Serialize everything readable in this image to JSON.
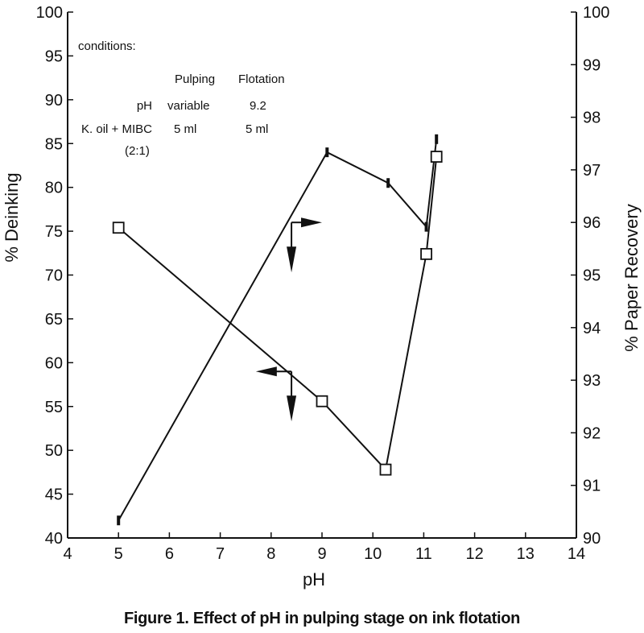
{
  "caption": "Figure 1. Effect of pH in pulping stage on ink flotation",
  "conditions": {
    "heading": "conditions:",
    "col_pulping": "Pulping",
    "col_flotation": "Flotation",
    "row1_label": "pH",
    "row1_pulping": "variable",
    "row1_flotation": "9.2",
    "row2_label": "K. oil + MIBC",
    "row2_label_sub": "(2:1)",
    "row2_pulping": "5 ml",
    "row2_flotation": "5 ml"
  },
  "chart_data": {
    "type": "line",
    "title": "",
    "xlabel": "pH",
    "ylabel": "% Deinking",
    "y2label": "% Paper Recovery",
    "xlim": [
      4,
      14
    ],
    "ylim": [
      40,
      100
    ],
    "y2lim": [
      90,
      100
    ],
    "x_ticks": [
      "4",
      "5",
      "6",
      "7",
      "8",
      "9",
      "10",
      "11",
      "12",
      "13",
      "14"
    ],
    "y_ticks": [
      "40",
      "45",
      "50",
      "55",
      "60",
      "65",
      "70",
      "75",
      "80",
      "85",
      "90",
      "95",
      "100"
    ],
    "y2_ticks": [
      "90",
      "91",
      "92",
      "93",
      "94",
      "95",
      "96",
      "97",
      "98",
      "99",
      "100"
    ],
    "grid": false,
    "series": [
      {
        "axis": "left",
        "marker": "bar",
        "points": [
          {
            "x": 5.0,
            "y": 42.0
          },
          {
            "x": 9.1,
            "y": 84.0
          },
          {
            "x": 10.3,
            "y": 80.5
          },
          {
            "x": 11.05,
            "y": 75.5
          },
          {
            "x": 11.25,
            "y": 85.5
          }
        ]
      },
      {
        "axis": "right",
        "marker": "square",
        "points": [
          {
            "x": 5.0,
            "y": 95.9
          },
          {
            "x": 9.0,
            "y": 92.6
          },
          {
            "x": 10.25,
            "y": 91.3
          },
          {
            "x": 11.05,
            "y": 95.4
          },
          {
            "x": 11.25,
            "y": 97.25
          }
        ]
      }
    ],
    "annotations": [
      {
        "type": "axis-arrow",
        "points_to": "right-axis",
        "x": 8.4,
        "y": 76.0,
        "dx": 0.6
      },
      {
        "type": "axis-arrow",
        "points_to": "left-axis",
        "x": 8.4,
        "y": 59.0,
        "dx": -0.7
      }
    ]
  },
  "colors": {
    "ink": "#111111",
    "background": "#ffffff"
  }
}
